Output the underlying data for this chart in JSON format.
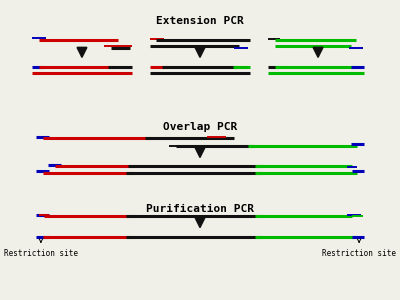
{
  "bg_color": "#f0f0e8",
  "title_fontsize": 8,
  "label_fontsize": 5.5,
  "line_lw": 2.2,
  "thin_lw": 1.4,
  "arrow_color": "#111111",
  "restriction_label": "Restriction site",
  "colors": {
    "red": "#cc0000",
    "green": "#00bb00",
    "blue": "#0000bb",
    "black": "#111111"
  },
  "sections": {
    "Extension PCR": 0.955,
    "Overlap PCR": 0.595,
    "Purification PCR": 0.315
  }
}
